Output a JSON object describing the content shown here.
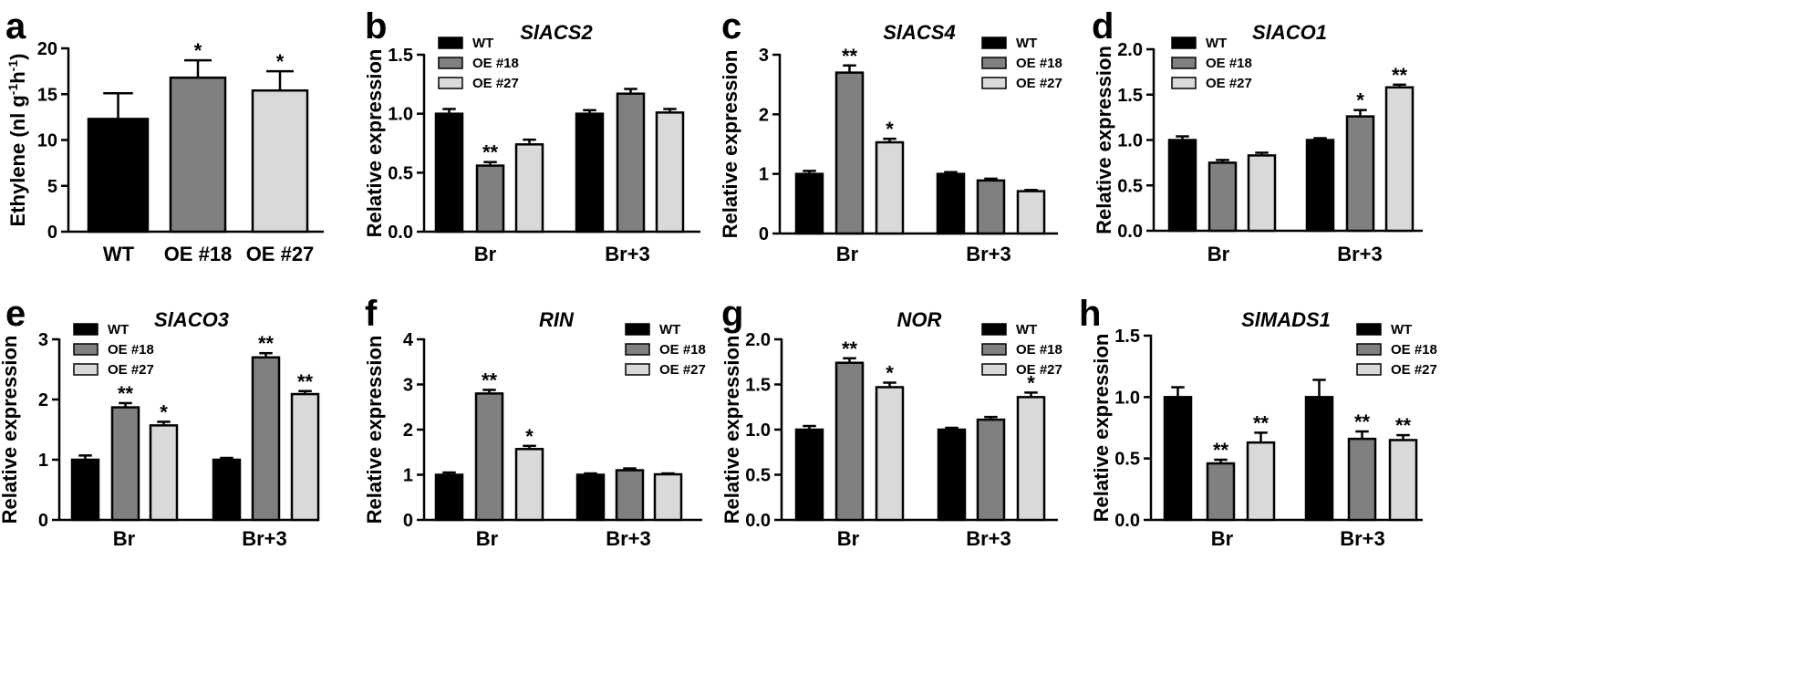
{
  "colors": {
    "WT": "#000000",
    "OE #18": "#808080",
    "OE #27": "#d9d9d9"
  },
  "chart_data": [
    {
      "panel": "a",
      "type": "bar",
      "title": "",
      "ylabel": "Ethylene (nl g⁻¹h⁻¹)",
      "ylabel_parts": [
        "Ethylene (nl g",
        "-1",
        "h",
        "-1",
        ")"
      ],
      "ylim": [
        0,
        20
      ],
      "yticks": [
        "0",
        "5",
        "10",
        "15",
        "20"
      ],
      "categories": [
        "WT",
        "OE #18",
        "OE #27"
      ],
      "values": [
        12.3,
        16.8,
        15.4
      ],
      "errors": [
        2.8,
        1.9,
        2.1
      ],
      "sig": [
        "",
        "*",
        "*"
      ],
      "legend": null
    },
    {
      "panel": "b",
      "type": "bar",
      "title": "SlACS2",
      "ylabel": "Relative expression",
      "ylim": [
        0,
        1.5
      ],
      "yticks": [
        "0.0",
        "0.5",
        "1.0",
        "1.5"
      ],
      "categories": [
        "Br",
        "Br+3"
      ],
      "legend": [
        "WT",
        "OE #18",
        "OE #27"
      ],
      "series": [
        {
          "name": "WT",
          "values": [
            1.0,
            1.0
          ],
          "errors": [
            0.04,
            0.03
          ],
          "sig": [
            "",
            ""
          ]
        },
        {
          "name": "OE #18",
          "values": [
            0.56,
            1.17
          ],
          "errors": [
            0.03,
            0.04
          ],
          "sig": [
            "**",
            ""
          ]
        },
        {
          "name": "OE #27",
          "values": [
            0.74,
            1.01
          ],
          "errors": [
            0.04,
            0.03
          ],
          "sig": [
            "",
            ""
          ]
        }
      ]
    },
    {
      "panel": "c",
      "type": "bar",
      "title": "SlACS4",
      "ylabel": "Relative expression",
      "ylim": [
        0,
        3
      ],
      "yticks": [
        "0",
        "1",
        "2",
        "3"
      ],
      "categories": [
        "Br",
        "Br+3"
      ],
      "legend": [
        "WT",
        "OE #18",
        "OE #27"
      ],
      "series": [
        {
          "name": "WT",
          "values": [
            1.0,
            1.0
          ],
          "errors": [
            0.05,
            0.03
          ],
          "sig": [
            "",
            ""
          ]
        },
        {
          "name": "OE #18",
          "values": [
            2.7,
            0.89
          ],
          "errors": [
            0.12,
            0.03
          ],
          "sig": [
            "**",
            ""
          ]
        },
        {
          "name": "OE #27",
          "values": [
            1.53,
            0.71
          ],
          "errors": [
            0.06,
            0.02
          ],
          "sig": [
            "*",
            ""
          ]
        }
      ]
    },
    {
      "panel": "d",
      "type": "bar",
      "title": "SlACO1",
      "ylabel": "Relative expression",
      "ylim": [
        0,
        2
      ],
      "yticks": [
        "0.0",
        "0.5",
        "1.0",
        "1.5",
        "2.0"
      ],
      "categories": [
        "Br",
        "Br+3"
      ],
      "legend": [
        "WT",
        "OE #18",
        "OE #27"
      ],
      "series": [
        {
          "name": "WT",
          "values": [
            1.0,
            1.0
          ],
          "errors": [
            0.04,
            0.02
          ],
          "sig": [
            "",
            ""
          ]
        },
        {
          "name": "OE #18",
          "values": [
            0.75,
            1.26
          ],
          "errors": [
            0.03,
            0.07
          ],
          "sig": [
            "",
            "*"
          ]
        },
        {
          "name": "OE #27",
          "values": [
            0.83,
            1.58
          ],
          "errors": [
            0.03,
            0.03
          ],
          "sig": [
            "",
            "**"
          ]
        }
      ]
    },
    {
      "panel": "e",
      "type": "bar",
      "title": "SlACO3",
      "ylabel": "Relative expression",
      "ylim": [
        0,
        3
      ],
      "yticks": [
        "0",
        "1",
        "2",
        "3"
      ],
      "categories": [
        "Br",
        "Br+3"
      ],
      "legend": [
        "WT",
        "OE #18",
        "OE #27"
      ],
      "series": [
        {
          "name": "WT",
          "values": [
            1.0,
            1.0
          ],
          "errors": [
            0.07,
            0.03
          ],
          "sig": [
            "",
            ""
          ]
        },
        {
          "name": "OE #18",
          "values": [
            1.87,
            2.7
          ],
          "errors": [
            0.07,
            0.07
          ],
          "sig": [
            "**",
            "**"
          ]
        },
        {
          "name": "OE #27",
          "values": [
            1.57,
            2.09
          ],
          "errors": [
            0.06,
            0.05
          ],
          "sig": [
            "*",
            "**"
          ]
        }
      ]
    },
    {
      "panel": "f",
      "type": "bar",
      "title": "RIN",
      "ylabel": "Relative expression",
      "ylim": [
        0,
        4
      ],
      "yticks": [
        "0",
        "1",
        "2",
        "3",
        "4"
      ],
      "categories": [
        "Br",
        "Br+3"
      ],
      "legend": [
        "WT",
        "OE #18",
        "OE #27"
      ],
      "series": [
        {
          "name": "WT",
          "values": [
            1.0,
            1.0
          ],
          "errors": [
            0.05,
            0.03
          ],
          "sig": [
            "",
            ""
          ]
        },
        {
          "name": "OE #18",
          "values": [
            2.8,
            1.1
          ],
          "errors": [
            0.08,
            0.04
          ],
          "sig": [
            "**",
            ""
          ]
        },
        {
          "name": "OE #27",
          "values": [
            1.57,
            1.01
          ],
          "errors": [
            0.07,
            0.02
          ],
          "sig": [
            "*",
            ""
          ]
        }
      ]
    },
    {
      "panel": "g",
      "type": "bar",
      "title": "NOR",
      "ylabel": "Relative expression",
      "ylim": [
        0,
        2
      ],
      "yticks": [
        "0.0",
        "0.5",
        "1.0",
        "1.5",
        "2.0"
      ],
      "categories": [
        "Br",
        "Br+3"
      ],
      "legend": [
        "WT",
        "OE #18",
        "OE #27"
      ],
      "series": [
        {
          "name": "WT",
          "values": [
            1.0,
            1.0
          ],
          "errors": [
            0.04,
            0.02
          ],
          "sig": [
            "",
            ""
          ]
        },
        {
          "name": "OE #18",
          "values": [
            1.74,
            1.11
          ],
          "errors": [
            0.05,
            0.03
          ],
          "sig": [
            "**",
            ""
          ]
        },
        {
          "name": "OE #27",
          "values": [
            1.47,
            1.36
          ],
          "errors": [
            0.05,
            0.05
          ],
          "sig": [
            "*",
            "*"
          ]
        }
      ]
    },
    {
      "panel": "h",
      "type": "bar",
      "title": "SlMADS1",
      "ylabel": "Relative expression",
      "ylim": [
        0,
        1.5
      ],
      "yticks": [
        "0.0",
        "0.5",
        "1.0",
        "1.5"
      ],
      "categories": [
        "Br",
        "Br+3"
      ],
      "legend": [
        "WT",
        "OE #18",
        "OE #27"
      ],
      "series": [
        {
          "name": "WT",
          "values": [
            1.0,
            1.0
          ],
          "errors": [
            0.08,
            0.14
          ],
          "sig": [
            "",
            ""
          ]
        },
        {
          "name": "OE #18",
          "values": [
            0.46,
            0.66
          ],
          "errors": [
            0.03,
            0.06
          ],
          "sig": [
            "**",
            "**"
          ]
        },
        {
          "name": "OE #27",
          "values": [
            0.63,
            0.65
          ],
          "errors": [
            0.08,
            0.04
          ],
          "sig": [
            "**",
            "**"
          ]
        }
      ]
    }
  ]
}
